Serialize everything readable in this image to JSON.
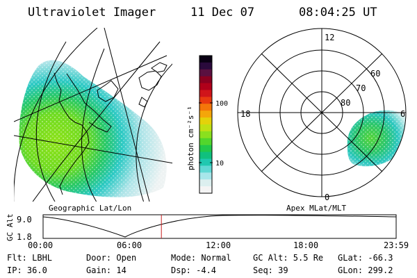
{
  "header": {
    "instrument": "Ultraviolet Imager",
    "date": "11 Dec 07",
    "time": "08:04:25 UT"
  },
  "left_panel": {
    "caption": "Geographic Lat/Lon"
  },
  "colorbar": {
    "label": "photon cm⁻²s⁻¹",
    "ticks": [
      "100",
      "10"
    ],
    "colors": [
      "#0a0014",
      "#2a0a3c",
      "#5a1040",
      "#8a0020",
      "#b0001a",
      "#d0141a",
      "#e83a10",
      "#f4760a",
      "#f4a60a",
      "#e4d20a",
      "#c0e014",
      "#8ae01e",
      "#52d62c",
      "#22c84a",
      "#10c07e",
      "#20c8b0",
      "#60d8d4",
      "#a8e6ea",
      "#dcefef",
      "#f4f4f4"
    ]
  },
  "right_panel": {
    "caption": "Apex MLat/MLT",
    "mlt_labels": [
      "12",
      "18",
      "6",
      "0"
    ],
    "mlat_labels": [
      "60",
      "70",
      "80"
    ]
  },
  "altitude_plot": {
    "ylabel": "GC Alt",
    "yticks": [
      "9.0",
      "1.8"
    ],
    "xticks": [
      "00:00",
      "06:00",
      "12:00",
      "18:00",
      "23:59"
    ],
    "current_time_fraction": 0.335
  },
  "info": {
    "filter": "Flt: LBHL",
    "ip": "IP: 36.0",
    "door": "Door: Open",
    "gain": "Gain: 14",
    "mode": "Mode: Normal",
    "dsp": "Dsp:    -4.4",
    "gc_alt": "GC Alt: 5.5 Re",
    "seq": "Seq: 39",
    "glat": "GLat: -66.3",
    "glon": "GLon: 299.2"
  }
}
